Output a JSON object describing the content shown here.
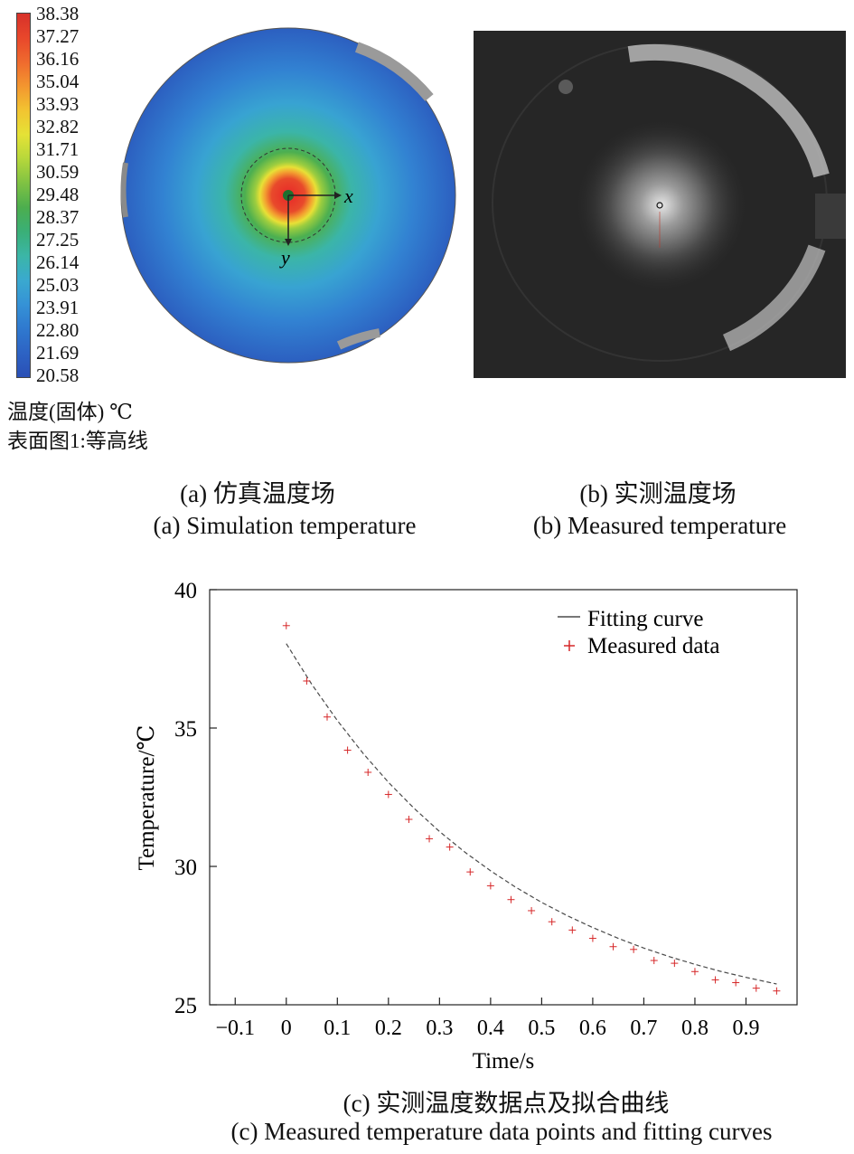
{
  "colorbar": {
    "ticks": [
      "38.38",
      "37.27",
      "36.16",
      "35.04",
      "33.93",
      "32.82",
      "31.71",
      "30.59",
      "29.48",
      "28.37",
      "27.25",
      "26.14",
      "25.03",
      "23.91",
      "22.80",
      "21.69",
      "20.58"
    ],
    "colors": [
      "#d7312a",
      "#e8472b",
      "#ef6a2e",
      "#f3962f",
      "#f2c431",
      "#e5e236",
      "#b6d73b",
      "#7fc243",
      "#4cae4e",
      "#3aaf77",
      "#3bb6a7",
      "#3aa9cf",
      "#3592d6",
      "#2f79cf",
      "#2d63c4",
      "#2a50b6"
    ],
    "title_line1": "温度(固体) ℃",
    "title_line2": "表面图1:等高线"
  },
  "panel_a": {
    "axis_x": "x",
    "axis_y": "y",
    "caption_cn": "(a) 仿真温度场",
    "caption_en": "(a) Simulation temperature"
  },
  "panel_b": {
    "caption_cn": "(b) 实测温度场",
    "caption_en": "(b) Measured temperature"
  },
  "panel_c": {
    "caption_cn": "(c) 实测温度数据点及拟合曲线",
    "caption_en": "(c) Measured temperature data points and fitting curves"
  },
  "chart_data": {
    "type": "scatter",
    "xlabel": "Time/s",
    "ylabel": "Temperature/℃",
    "xlim": [
      -0.15,
      1.0
    ],
    "ylim": [
      25,
      40
    ],
    "xticks": [
      "-0.1",
      "0",
      "0.1",
      "0.2",
      "0.3",
      "0.4",
      "0.5",
      "0.6",
      "0.7",
      "0.8",
      "0.9"
    ],
    "yticks": [
      "25",
      "30",
      "35",
      "40"
    ],
    "legend_position": "top-right",
    "legend": [
      "Fitting curve",
      "Measured data"
    ],
    "colors": {
      "fit": "#4a4a4a",
      "measured": "#d62728"
    },
    "series": [
      {
        "name": "Measured data",
        "x": [
          0.0,
          0.04,
          0.08,
          0.12,
          0.16,
          0.2,
          0.24,
          0.28,
          0.32,
          0.36,
          0.4,
          0.44,
          0.48,
          0.52,
          0.56,
          0.6,
          0.64,
          0.68,
          0.72,
          0.76,
          0.8,
          0.84,
          0.88,
          0.92,
          0.96
        ],
        "y": [
          38.7,
          36.7,
          35.4,
          34.2,
          33.4,
          32.6,
          31.7,
          31.0,
          30.7,
          29.8,
          29.3,
          28.8,
          28.4,
          28.0,
          27.7,
          27.4,
          27.1,
          27.0,
          26.6,
          26.5,
          26.2,
          25.9,
          25.8,
          25.6,
          25.5
        ]
      },
      {
        "name": "Fitting curve",
        "x": [
          0.0,
          0.05,
          0.1,
          0.15,
          0.2,
          0.25,
          0.3,
          0.35,
          0.4,
          0.45,
          0.5,
          0.55,
          0.6,
          0.65,
          0.7,
          0.75,
          0.8,
          0.85,
          0.9,
          0.95,
          0.96
        ],
        "y": [
          38.05,
          36.58,
          35.27,
          34.09,
          33.04,
          32.1,
          31.26,
          30.51,
          29.84,
          29.24,
          28.7,
          28.22,
          27.79,
          27.4,
          27.05,
          26.74,
          26.46,
          26.21,
          25.99,
          25.79,
          25.75
        ]
      }
    ]
  }
}
